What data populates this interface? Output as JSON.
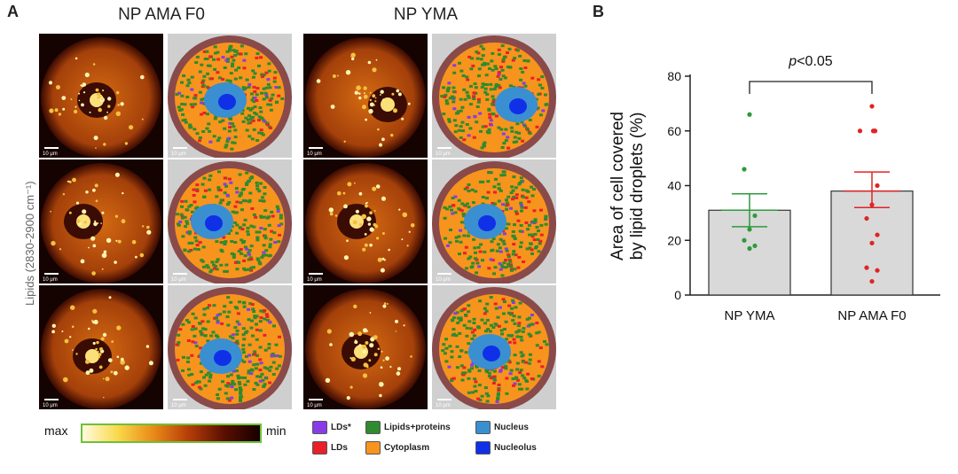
{
  "panel_a": {
    "letter": "A",
    "col1_title": "NP AMA F0",
    "col2_title": "NP YMA",
    "ylabel": "Lipids (2830-2900 cm⁻¹)",
    "scale_label": "10 μm",
    "colorbar": {
      "max": "max",
      "min": "min"
    },
    "legend": [
      {
        "label": "LDs*",
        "color": "#8a3be8"
      },
      {
        "label": "LDs",
        "color": "#e8202a"
      },
      {
        "label": "Lipids+proteins",
        "color": "#2e8b2e"
      },
      {
        "label": "Cytoplasm",
        "color": "#f7941d"
      },
      {
        "label": "Nucleus",
        "color": "#3a8fd1"
      },
      {
        "label": "Nucleolus",
        "color": "#1030e8"
      }
    ]
  },
  "panel_b": {
    "letter": "B",
    "significance": "p<0.05"
  },
  "chart_data": {
    "type": "bar",
    "title": "",
    "xlabel": "",
    "ylabel": "Area of cell covered by lipid droplets (%)",
    "ylim": [
      0,
      80
    ],
    "yticks": [
      0,
      20,
      40,
      60,
      80
    ],
    "categories": [
      "NP YMA",
      "NP AMA F0"
    ],
    "values": [
      31,
      38
    ],
    "error_upper": [
      37,
      45
    ],
    "error_lower": [
      25,
      32
    ],
    "colors": [
      "#2e9a3a",
      "#e02424"
    ],
    "points": [
      [
        66,
        46,
        29,
        24,
        20,
        18,
        17
      ],
      [
        69,
        60,
        60,
        60,
        60,
        40,
        33,
        28,
        22,
        19,
        10,
        9,
        5
      ]
    ],
    "annotation": "p<0.05"
  }
}
